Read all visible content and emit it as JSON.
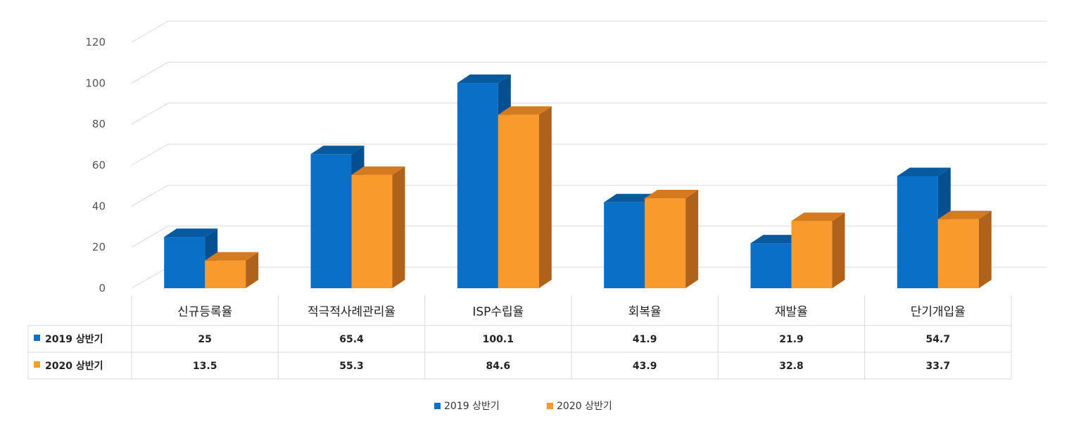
{
  "chart_data": {
    "type": "bar",
    "title": "",
    "xlabel": "",
    "ylabel": "",
    "ylim": [
      0,
      120
    ],
    "yticks": [
      0,
      20,
      40,
      60,
      80,
      100,
      120
    ],
    "grid": true,
    "legend_position": "bottom",
    "data_table": true,
    "three_d": true,
    "categories": [
      "신규등록율",
      "적극적사례관리율",
      "ISP수립율",
      "회복율",
      "재발율",
      "단기개입율"
    ],
    "series": [
      {
        "name": "2019 상반기",
        "values": [
          25,
          65.4,
          100.1,
          41.9,
          21.9,
          54.7
        ],
        "color": "#0a6fc6",
        "side_color": "#044f8f",
        "top_color": "#075a9e"
      },
      {
        "name": "2020 상반기",
        "values": [
          13.5,
          55.3,
          84.6,
          43.9,
          32.8,
          33.7
        ],
        "color": "#f99a2d",
        "side_color": "#b0621a",
        "top_color": "#d67a20"
      }
    ]
  }
}
